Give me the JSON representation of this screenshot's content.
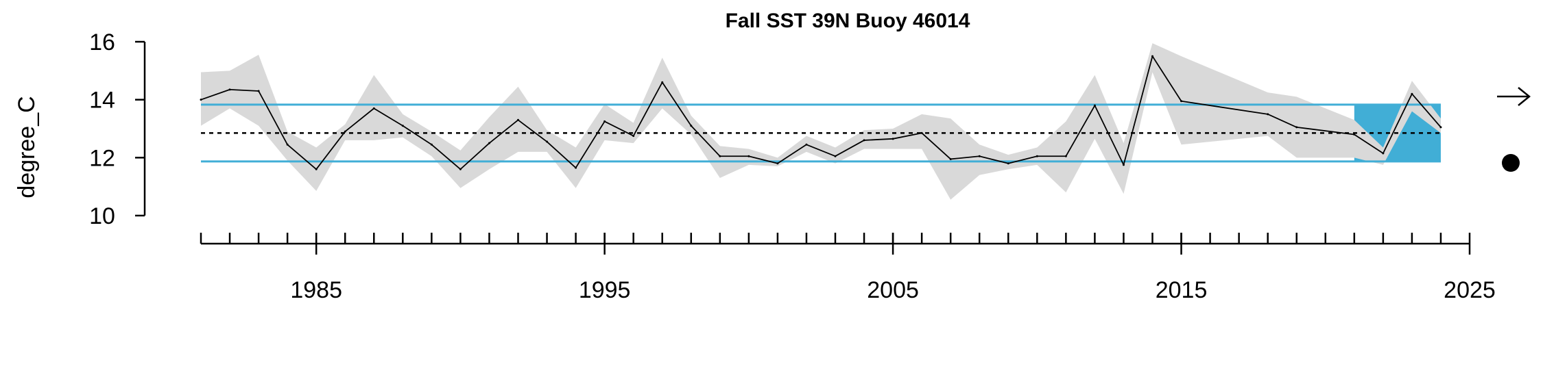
{
  "chart_data": {
    "type": "line",
    "title": "Fall SST 39N Buoy 46014",
    "xlabel": "",
    "ylabel": "degree_C",
    "xlim": [
      1981,
      2025
    ],
    "ylim": [
      10,
      16
    ],
    "y_ticks": [
      "10",
      "12",
      "14",
      "16"
    ],
    "x_ticks_major": [
      "1985",
      "1995",
      "2005",
      "2015",
      "2025"
    ],
    "x_ticks_minor_from": 1981,
    "x_ticks_minor_to": 2024,
    "mean": 12.85,
    "upper_sd": 13.83,
    "lower_sd": 11.87,
    "highlight_range": [
      2021,
      2024
    ],
    "trend_indicator": "arrow-right",
    "mean_indicator": "dot",
    "colors": {
      "line": "#000000",
      "band": "#d9d9d9",
      "sd_line": "#41aed6",
      "highlight": "#41aed6",
      "mean_line": "#000000"
    },
    "series": [
      {
        "x": [
          1981,
          1982,
          1983,
          1984,
          1985,
          1986,
          1987,
          1988,
          1989,
          1990,
          1991,
          1992,
          1993,
          1994,
          1995,
          1996,
          1997,
          1998,
          1999,
          2000,
          2001,
          2002,
          2003,
          2004,
          2005,
          2006,
          2007,
          2008,
          2009,
          2010,
          2011,
          2012,
          2013,
          2014,
          2015,
          2018,
          2019,
          2021,
          2022,
          2023,
          2024
        ],
        "values": [
          14.0,
          14.35,
          14.3,
          12.45,
          11.6,
          12.9,
          13.7,
          13.1,
          12.45,
          11.6,
          12.5,
          13.3,
          12.55,
          11.65,
          13.25,
          12.75,
          14.6,
          13.1,
          12.05,
          12.05,
          11.8,
          12.45,
          12.05,
          12.6,
          12.65,
          12.85,
          11.95,
          12.05,
          11.8,
          12.05,
          12.05,
          13.8,
          11.75,
          15.5,
          13.95,
          13.5,
          13.05,
          12.8,
          12.15,
          14.2,
          13.05
        ],
        "upper": [
          14.95,
          15.0,
          15.55,
          12.9,
          12.35,
          13.15,
          14.85,
          13.5,
          12.9,
          12.25,
          13.4,
          14.45,
          12.95,
          12.35,
          13.85,
          13.2,
          15.45,
          13.45,
          12.4,
          12.3,
          12.0,
          12.75,
          12.35,
          12.95,
          13.0,
          13.5,
          13.35,
          12.45,
          12.1,
          12.35,
          13.25,
          14.85,
          12.5,
          15.95,
          15.5,
          14.25,
          14.1,
          13.3,
          12.35,
          14.65,
          13.35
        ],
        "lower": [
          13.1,
          13.7,
          13.1,
          11.9,
          10.85,
          12.6,
          12.6,
          12.7,
          12.05,
          10.95,
          11.6,
          12.2,
          12.2,
          10.95,
          12.6,
          12.5,
          13.7,
          12.8,
          11.3,
          11.75,
          11.7,
          12.2,
          11.8,
          12.3,
          12.3,
          12.3,
          10.55,
          11.4,
          11.6,
          11.75,
          10.8,
          12.65,
          10.75,
          14.95,
          12.45,
          12.75,
          12.0,
          12.0,
          11.75,
          13.6,
          12.85
        ]
      }
    ]
  }
}
